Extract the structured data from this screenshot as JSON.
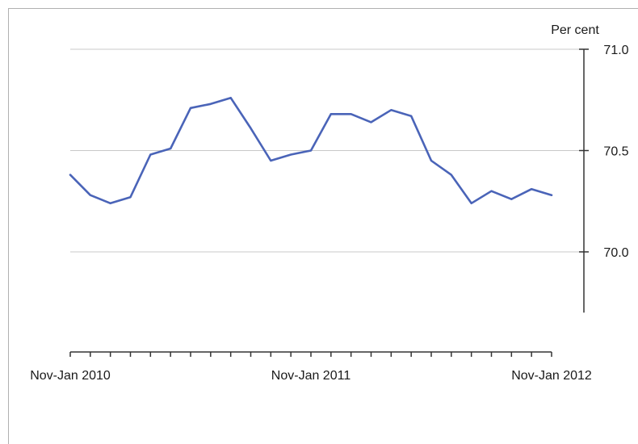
{
  "chart_data": {
    "type": "line",
    "title": "",
    "xlabel": "",
    "ylabel": "Per cent",
    "ylim": [
      69.7,
      71.0
    ],
    "yticks": [
      "71.0",
      "70.5",
      "70.0"
    ],
    "ytick_values": [
      71.0,
      70.5,
      70.0
    ],
    "xtick_labels": [
      "Nov-Jan 2010",
      "Nov-Jan 2011",
      "Nov-Jan 2012"
    ],
    "xtick_label_positions": [
      0,
      12,
      24
    ],
    "grid": true,
    "line_color": "#4a64b8",
    "series": [
      {
        "values": [
          70.38,
          70.28,
          70.24,
          70.27,
          70.48,
          70.51,
          70.71,
          70.73,
          70.76,
          70.61,
          70.45,
          70.48,
          70.5,
          70.68,
          70.68,
          70.64,
          70.7,
          70.67,
          70.45,
          70.38,
          70.24,
          70.3,
          70.26,
          70.31,
          70.28
        ]
      }
    ]
  }
}
